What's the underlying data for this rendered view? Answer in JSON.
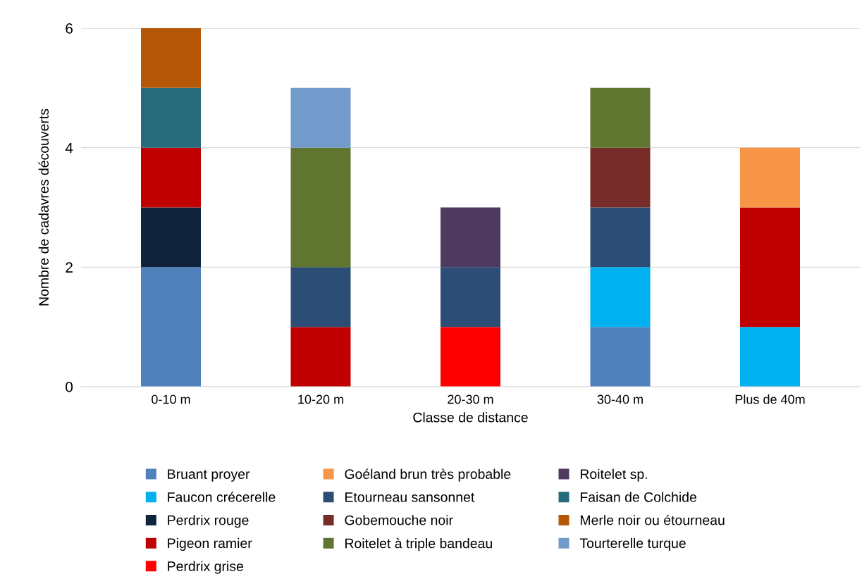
{
  "chart_data": {
    "type": "bar",
    "stacked": true,
    "xlabel": "Classe de distance",
    "ylabel": "Nombre de cadavres découverts",
    "categories": [
      "0-10 m",
      "10-20 m",
      "20-30 m",
      "30-40 m",
      "Plus de 40m"
    ],
    "ylim": [
      0,
      6
    ],
    "yticks": [
      0,
      2,
      4,
      6
    ],
    "grid": "y",
    "legend": "bottom",
    "series": [
      {
        "name": "Bruant proyer",
        "color": "#4f81bd",
        "values": [
          2,
          0,
          0,
          1,
          0
        ]
      },
      {
        "name": "Faucon crécerelle",
        "color": "#00b0f0",
        "values": [
          0,
          0,
          0,
          1,
          1
        ]
      },
      {
        "name": "Perdrix rouge",
        "color": "#10243e",
        "values": [
          1,
          0,
          0,
          0,
          0
        ]
      },
      {
        "name": "Pigeon ramier",
        "color": "#c00000",
        "values": [
          1,
          1,
          0,
          0,
          2
        ]
      },
      {
        "name": "Perdrix grise",
        "color": "#ff0000",
        "values": [
          0,
          0,
          1,
          0,
          0
        ]
      },
      {
        "name": "Goéland brun très probable",
        "color": "#f79646",
        "values": [
          0,
          0,
          0,
          0,
          1
        ]
      },
      {
        "name": "Etourneau sansonnet",
        "color": "#2c4d75",
        "values": [
          0,
          1,
          1,
          1,
          0
        ]
      },
      {
        "name": "Gobemouche noir",
        "color": "#772c2a",
        "values": [
          0,
          0,
          0,
          1,
          0
        ]
      },
      {
        "name": "Roitelet à triple bandeau",
        "color": "#5f7530",
        "values": [
          0,
          2,
          0,
          1,
          0
        ]
      },
      {
        "name": "Roitelet sp.",
        "color": "#4f3a5f",
        "values": [
          0,
          0,
          1,
          0,
          0
        ]
      },
      {
        "name": "Faisan de Colchide",
        "color": "#276a7c",
        "values": [
          1,
          0,
          0,
          0,
          0
        ]
      },
      {
        "name": "Merle noir ou étourneau",
        "color": "#b65708",
        "values": [
          1,
          0,
          0,
          0,
          0
        ]
      },
      {
        "name": "Tourterelle turque",
        "color": "#729aca",
        "values": [
          0,
          1,
          0,
          0,
          0
        ]
      }
    ]
  }
}
